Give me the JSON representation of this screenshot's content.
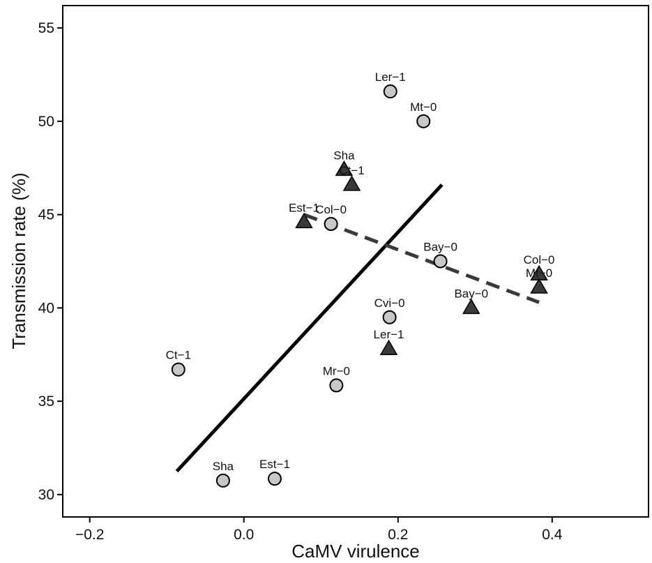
{
  "chart_data": {
    "type": "scatter",
    "title": "",
    "xlabel": "CaMV virulence",
    "ylabel": "Transmission rate (%)",
    "xlim": [
      -0.235,
      0.525
    ],
    "ylim": [
      28.8,
      56.2
    ],
    "xticks": [
      -0.2,
      0.0,
      0.2,
      0.4
    ],
    "xtick_labels": [
      "−0.2",
      "0.0",
      "0.2",
      "0.4"
    ],
    "yticks": [
      30,
      35,
      40,
      45,
      50,
      55
    ],
    "ytick_labels": [
      "30",
      "35",
      "40",
      "45",
      "50",
      "55"
    ],
    "grid": false,
    "legend": "none",
    "series": [
      {
        "marker": "circle",
        "fill": "#c8c8c8",
        "points": [
          {
            "label": "Ler−1",
            "x": 0.19,
            "y": 51.6
          },
          {
            "label": "Mt−0",
            "x": 0.233,
            "y": 50.0
          },
          {
            "label": "Col−0",
            "x": 0.113,
            "y": 44.5
          },
          {
            "label": "Bay−0",
            "x": 0.255,
            "y": 42.5
          },
          {
            "label": "Cvi−0",
            "x": 0.189,
            "y": 39.5
          },
          {
            "label": "Ct−1",
            "x": -0.085,
            "y": 36.7
          },
          {
            "label": "Mr−0",
            "x": 0.12,
            "y": 35.85
          },
          {
            "label": "Sha",
            "x": -0.027,
            "y": 30.75
          },
          {
            "label": "Est−1",
            "x": 0.04,
            "y": 30.85
          }
        ],
        "trend": {
          "style": "solid",
          "color": "#000000",
          "x": [
            -0.087,
            0.257
          ],
          "y": [
            31.25,
            46.6
          ]
        }
      },
      {
        "marker": "triangle",
        "fill": "#3a3a3a",
        "points": [
          {
            "label": "Sha",
            "x": 0.13,
            "y": 47.4
          },
          {
            "label": "Ct−1",
            "x": 0.14,
            "y": 46.6
          },
          {
            "label": "Est−1",
            "x": 0.078,
            "y": 44.6
          },
          {
            "label": "Bay−0",
            "x": 0.295,
            "y": 40.0
          },
          {
            "label": "Ler−1",
            "x": 0.188,
            "y": 37.8
          },
          {
            "label": "Col−0",
            "x": 0.383,
            "y": 41.8
          },
          {
            "label": "Mt−0",
            "x": 0.383,
            "y": 41.1
          }
        ],
        "trend": {
          "style": "dashed",
          "color": "#3a3a3a",
          "x": [
            0.078,
            0.383
          ],
          "y": [
            45.0,
            40.3
          ]
        }
      }
    ]
  }
}
